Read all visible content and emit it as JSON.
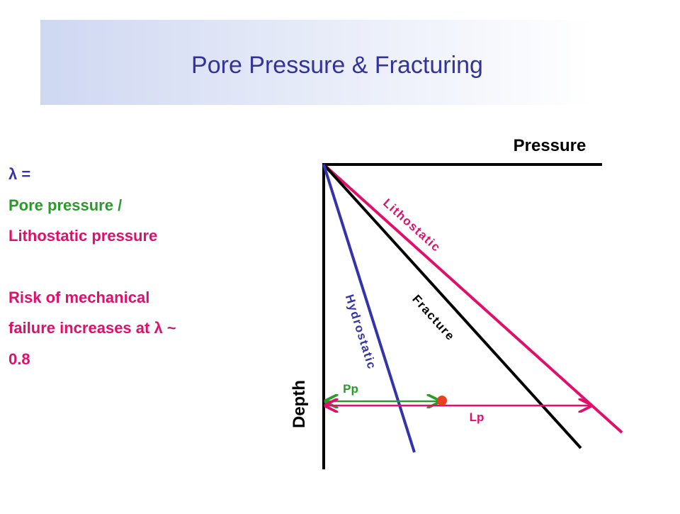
{
  "header": {
    "title": "Pore Pressure & Fracturing"
  },
  "text": {
    "lines": [
      "λ =",
      "Pore pressure /",
      "Lithostatic pressure",
      "Risk of mechanical",
      "failure increases at λ ~",
      "0.8"
    ]
  },
  "diagram": {
    "x_axis": "Pressure",
    "y_axis": "Depth",
    "curves": [
      "Lithostatic",
      "Fracture",
      "Hydrostatic"
    ],
    "markers": [
      "Pp",
      "Lp"
    ]
  }
}
